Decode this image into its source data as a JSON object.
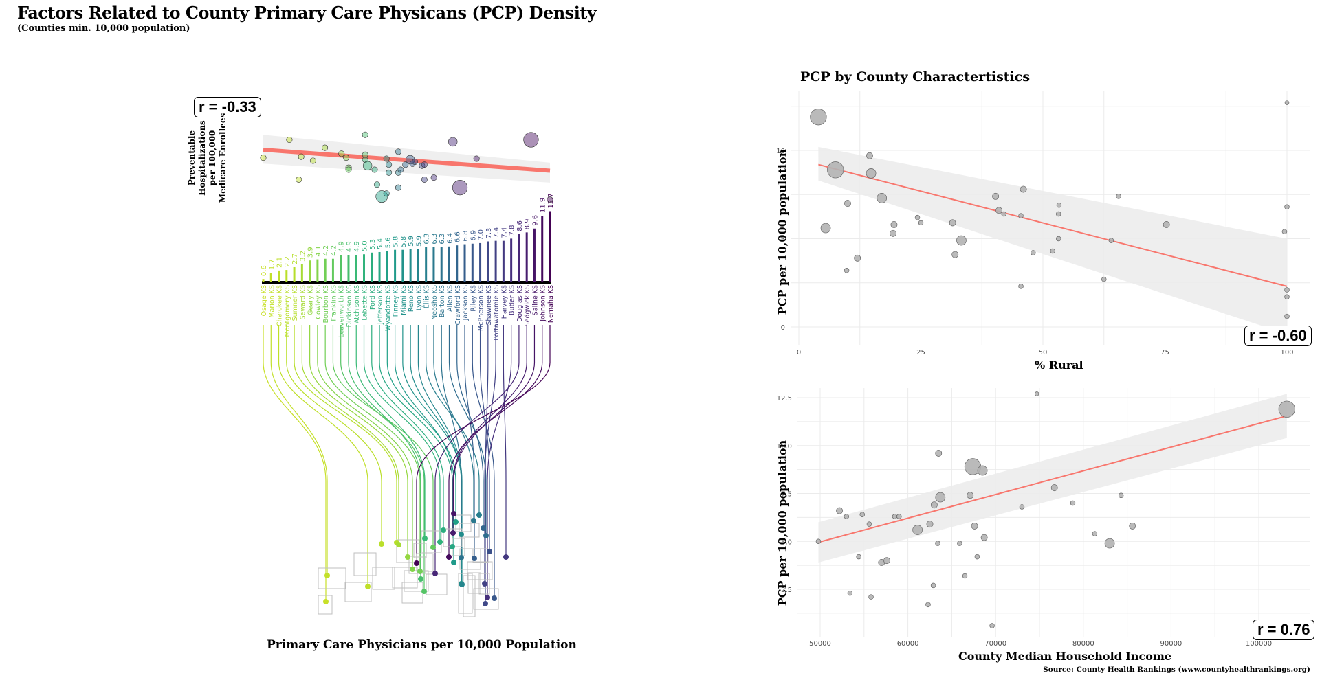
{
  "header": {
    "title": "Factors Related to County Primary Care Physicans (PCP) Density",
    "subtitle": "(Counties min. 10,000 population)"
  },
  "left_panel": {
    "correlation_label": "r = -0.33",
    "y_axis_title_lines": [
      "Preventable",
      "Hospitalizations",
      "per 100,000",
      "Medicare Enrollees"
    ],
    "x_axis_title": "Primary Care Physicians per 10,000 Population"
  },
  "right_panel": {
    "title": "PCP by County Charactertistics"
  },
  "source": "Source: County Health Rankings (www.countyhealthrankings.org)",
  "colors": {
    "trend_line": "#F8766D",
    "confidence_band": "#EBEBEB",
    "point_fill": "#B3B3B3",
    "grid": "#EBEBEB",
    "viridis_start": "#C2DF23",
    "viridis_end": "#440154"
  },
  "chart_data": [
    {
      "type": "bar",
      "name": "pcp-lollipop",
      "title": "Primary Care Physicians per 10,000 Population",
      "categories": [
        "Osage KS",
        "Marion KS",
        "Cherokee KS",
        "Montgomery KS",
        "Sumner KS",
        "Seward KS",
        "Geary KS",
        "Cowley KS",
        "Bourbon KS",
        "Franklin KS",
        "Leavenworth KS",
        "Dickinson KS",
        "Atchison KS",
        "Labette KS",
        "Ford KS",
        "Jefferson KS",
        "Wyandotte KS",
        "Finney KS",
        "Miami KS",
        "Reno KS",
        "Lyon KS",
        "Ellis KS",
        "Neosho KS",
        "Barton KS",
        "Allen KS",
        "Crawford KS",
        "Jackson KS",
        "Riley KS",
        "McPherson KS",
        "Shawnee KS",
        "Pottawatomie KS",
        "Harvey KS",
        "Butler KS",
        "Douglas KS",
        "Sedgwick KS",
        "Saline KS",
        "Johnson KS",
        "Nemaha KS"
      ],
      "values": [
        0.6,
        1.7,
        2.1,
        2.2,
        2.7,
        3.2,
        3.9,
        4.1,
        4.2,
        4.2,
        4.9,
        4.9,
        4.9,
        5.0,
        5.3,
        5.4,
        5.6,
        5.8,
        5.8,
        5.9,
        5.9,
        6.3,
        6.3,
        6.3,
        6.4,
        6.6,
        6.8,
        6.9,
        7.0,
        7.3,
        7.4,
        7.4,
        7.8,
        8.6,
        8.9,
        9.6,
        11.9,
        12.7
      ],
      "data_labels": [
        "0.6",
        "1.7",
        "2.1",
        "2.2",
        "2.7",
        "3.2",
        "3.9",
        "4.1",
        "4.2",
        "4.2",
        "4.9",
        "4.9",
        "4.9",
        "5.0",
        "5.3",
        "5.4",
        "5.6",
        "5.8",
        "5.8",
        "5.9",
        "5.9",
        "6.3",
        "6.3",
        "6.3",
        "6.4",
        "6.6",
        "6.8",
        "6.9",
        "7.0",
        "7.3",
        "7.4",
        "7.4",
        "7.8",
        "8.6",
        "8.9",
        "9.6",
        "11.9",
        "12.7"
      ],
      "color_scale": "viridis (reversed by rank)"
    },
    {
      "type": "scatter",
      "name": "preventable-hospitalizations-vs-pcp",
      "ylabel": "Preventable Hospitalizations per 100,000 Medicare Enrollees",
      "xlabel": "Primary Care Physicians per 10,000 Population",
      "annotation": "r = -0.33",
      "trend": "linear with confidence band",
      "x": [
        0.6,
        1.7,
        2.1,
        2.2,
        2.7,
        3.2,
        3.9,
        4.1,
        4.2,
        4.2,
        4.9,
        4.9,
        4.9,
        5.0,
        5.3,
        5.4,
        5.6,
        5.8,
        5.8,
        5.9,
        5.9,
        6.3,
        6.3,
        6.3,
        6.4,
        6.6,
        6.8,
        6.9,
        7.0,
        7.3,
        7.4,
        7.4,
        7.8,
        8.6,
        8.9,
        9.6,
        11.9,
        12.7
      ],
      "y_relative": [
        0.48,
        0.3,
        0.7,
        0.47,
        0.51,
        0.38,
        0.44,
        0.48,
        0.58,
        0.6,
        0.45,
        0.25,
        0.5,
        0.56,
        0.6,
        0.75,
        0.87,
        0.49,
        0.84,
        0.63,
        0.55,
        0.63,
        0.78,
        0.42,
        0.6,
        0.55,
        0.5,
        0.54,
        0.52,
        0.56,
        0.7,
        0.55,
        0.68,
        0.32,
        0.78,
        0.49,
        0.3,
        0.9
      ],
      "size_relative": [
        1,
        1,
        1,
        1,
        1,
        1,
        1,
        1,
        1,
        1,
        1,
        1,
        1,
        2,
        1,
        1,
        3,
        1,
        1,
        1,
        1,
        1,
        1,
        1,
        1,
        1,
        2,
        1,
        1,
        1,
        1,
        1,
        1,
        2,
        4,
        1,
        4,
        1
      ],
      "trend_start_relative": 0.4,
      "trend_end_relative": 0.61
    },
    {
      "type": "scatter",
      "name": "pcp-vs-rural",
      "xlabel": "% Rural",
      "ylabel": "PCP per 10,000 population",
      "xlim": [
        0,
        100
      ],
      "ylim": [
        -1.1,
        13
      ],
      "x_ticks": [
        0,
        25,
        50,
        75,
        100
      ],
      "y_ticks": [
        0,
        5,
        10
      ],
      "x_tick_labels": [
        "0",
        "25",
        "50",
        "75",
        "100"
      ],
      "y_tick_labels": [
        "0",
        "5",
        "10"
      ],
      "grid": true,
      "annotation": "r = -0.60",
      "trend": {
        "x": [
          4,
          100
        ],
        "y": [
          9.2,
          2.3
        ],
        "band_low": [
          8.3,
          -0.4
        ],
        "band_high": [
          10.2,
          5.0
        ]
      },
      "points": [
        {
          "x": 4,
          "y": 11.9,
          "size": 4
        },
        {
          "x": 7.5,
          "y": 8.9,
          "size": 4
        },
        {
          "x": 5.5,
          "y": 5.6,
          "size": 2
        },
        {
          "x": 10,
          "y": 7.0,
          "size": 1
        },
        {
          "x": 12,
          "y": 3.9,
          "size": 1
        },
        {
          "x": 9.8,
          "y": 3.2,
          "size": 0.5
        },
        {
          "x": 14.5,
          "y": 9.7,
          "size": 1
        },
        {
          "x": 14.8,
          "y": 8.7,
          "size": 2
        },
        {
          "x": 17,
          "y": 7.3,
          "size": 2
        },
        {
          "x": 19.5,
          "y": 5.8,
          "size": 1
        },
        {
          "x": 19.3,
          "y": 5.3,
          "size": 1
        },
        {
          "x": 24.3,
          "y": 6.2,
          "size": 0.5
        },
        {
          "x": 25,
          "y": 5.9,
          "size": 0.5
        },
        {
          "x": 31.5,
          "y": 5.9,
          "size": 1
        },
        {
          "x": 33.3,
          "y": 4.9,
          "size": 2
        },
        {
          "x": 32,
          "y": 4.1,
          "size": 1
        },
        {
          "x": 40.3,
          "y": 7.4,
          "size": 1
        },
        {
          "x": 41,
          "y": 6.6,
          "size": 1
        },
        {
          "x": 42,
          "y": 6.4,
          "size": 0.5
        },
        {
          "x": 45.5,
          "y": 6.3,
          "size": 0.5
        },
        {
          "x": 46,
          "y": 7.8,
          "size": 1
        },
        {
          "x": 45.5,
          "y": 2.3,
          "size": 0.5
        },
        {
          "x": 48,
          "y": 4.2,
          "size": 0.5
        },
        {
          "x": 52,
          "y": 4.3,
          "size": 0.5
        },
        {
          "x": 53.3,
          "y": 6.9,
          "size": 0.5
        },
        {
          "x": 53.2,
          "y": 6.4,
          "size": 0.5
        },
        {
          "x": 53.2,
          "y": 5.0,
          "size": 0.5
        },
        {
          "x": 62.5,
          "y": 2.7,
          "size": 0.5
        },
        {
          "x": 64,
          "y": 4.9,
          "size": 0.5
        },
        {
          "x": 65.5,
          "y": 7.4,
          "size": 0.5
        },
        {
          "x": 75.3,
          "y": 5.8,
          "size": 1
        },
        {
          "x": 99.5,
          "y": 5.4,
          "size": 0.5
        },
        {
          "x": 100,
          "y": 6.8,
          "size": 0.5
        },
        {
          "x": 100,
          "y": 2.1,
          "size": 0.5
        },
        {
          "x": 100,
          "y": 1.7,
          "size": 0.5
        },
        {
          "x": 100,
          "y": 0.6,
          "size": 0.5
        },
        {
          "x": 100,
          "y": 12.7,
          "size": 0.3
        }
      ]
    },
    {
      "type": "scatter",
      "name": "pcp-vs-income",
      "xlabel": "County Median Household Income",
      "ylabel": "PCP per 10,000 population",
      "xlim": [
        47500,
        106000
      ],
      "ylim": [
        0.5,
        13
      ],
      "x_ticks": [
        50000,
        60000,
        70000,
        80000,
        90000,
        100000
      ],
      "y_ticks": [
        2.5,
        5.0,
        7.5,
        10.0,
        12.5
      ],
      "x_tick_labels": [
        "50000",
        "60000",
        "70000",
        "80000",
        "90000",
        "100000"
      ],
      "y_tick_labels": [
        "2.5",
        "5.0",
        "7.5",
        "10.0",
        "12.5"
      ],
      "grid": true,
      "annotation": "r = 0.76",
      "trend": {
        "x": [
          49800,
          103200
        ],
        "y": [
          4.95,
          11.55
        ],
        "band_low": [
          3.9,
          10.4
        ],
        "band_high": [
          6.0,
          12.7
        ]
      },
      "points": [
        {
          "x": 49800,
          "y": 5.0,
          "size": 0.5
        },
        {
          "x": 52200,
          "y": 6.6,
          "size": 1
        },
        {
          "x": 53000,
          "y": 6.3,
          "size": 0.5
        },
        {
          "x": 53400,
          "y": 2.3,
          "size": 0.5
        },
        {
          "x": 54400,
          "y": 4.2,
          "size": 0.5
        },
        {
          "x": 54800,
          "y": 6.4,
          "size": 0.5
        },
        {
          "x": 55600,
          "y": 5.9,
          "size": 0.5
        },
        {
          "x": 55800,
          "y": 2.1,
          "size": 0.5
        },
        {
          "x": 57000,
          "y": 3.9,
          "size": 1
        },
        {
          "x": 57600,
          "y": 4.0,
          "size": 1
        },
        {
          "x": 58500,
          "y": 6.3,
          "size": 0.5
        },
        {
          "x": 59000,
          "y": 6.3,
          "size": 0.5
        },
        {
          "x": 61100,
          "y": 5.6,
          "size": 2
        },
        {
          "x": 62300,
          "y": 1.7,
          "size": 0.5
        },
        {
          "x": 62500,
          "y": 5.9,
          "size": 1
        },
        {
          "x": 63000,
          "y": 6.9,
          "size": 1
        },
        {
          "x": 62900,
          "y": 2.7,
          "size": 0.5
        },
        {
          "x": 63400,
          "y": 4.9,
          "size": 0.5
        },
        {
          "x": 63500,
          "y": 9.6,
          "size": 1
        },
        {
          "x": 63700,
          "y": 7.3,
          "size": 2
        },
        {
          "x": 65900,
          "y": 4.9,
          "size": 0.5
        },
        {
          "x": 66500,
          "y": 3.2,
          "size": 0.5
        },
        {
          "x": 67100,
          "y": 7.4,
          "size": 1
        },
        {
          "x": 67400,
          "y": 8.9,
          "size": 4
        },
        {
          "x": 67600,
          "y": 5.8,
          "size": 1
        },
        {
          "x": 67900,
          "y": 4.2,
          "size": 0.5
        },
        {
          "x": 68500,
          "y": 8.7,
          "size": 2
        },
        {
          "x": 68700,
          "y": 5.2,
          "size": 1
        },
        {
          "x": 69600,
          "y": 0.6,
          "size": 0.5
        },
        {
          "x": 73000,
          "y": 6.8,
          "size": 0.5
        },
        {
          "x": 74700,
          "y": 12.7,
          "size": 0.3
        },
        {
          "x": 76700,
          "y": 7.8,
          "size": 1
        },
        {
          "x": 78800,
          "y": 7.0,
          "size": 0.5
        },
        {
          "x": 81300,
          "y": 5.4,
          "size": 0.5
        },
        {
          "x": 83000,
          "y": 4.9,
          "size": 2
        },
        {
          "x": 84300,
          "y": 7.4,
          "size": 0.5
        },
        {
          "x": 85600,
          "y": 5.8,
          "size": 1
        },
        {
          "x": 103200,
          "y": 11.9,
          "size": 4
        }
      ]
    }
  ]
}
